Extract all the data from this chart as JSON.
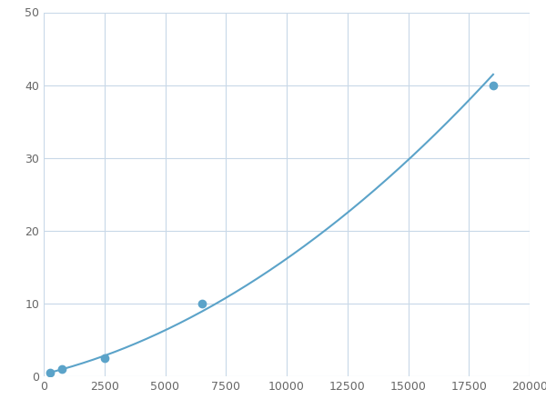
{
  "x": [
    250,
    750,
    2500,
    6500,
    18500
  ],
  "y": [
    0.5,
    1.0,
    2.5,
    10.0,
    40.0
  ],
  "line_color": "#5BA3C9",
  "marker_color": "#5BA3C9",
  "marker_size": 6,
  "line_width": 1.5,
  "xlim": [
    0,
    20000
  ],
  "ylim": [
    0,
    50
  ],
  "xticks": [
    0,
    2500,
    5000,
    7500,
    10000,
    12500,
    15000,
    17500,
    20000
  ],
  "yticks": [
    0,
    10,
    20,
    30,
    40,
    50
  ],
  "grid_color": "#C8D8E8",
  "background_color": "#FFFFFF",
  "figsize": [
    6.0,
    4.5
  ],
  "dpi": 100
}
